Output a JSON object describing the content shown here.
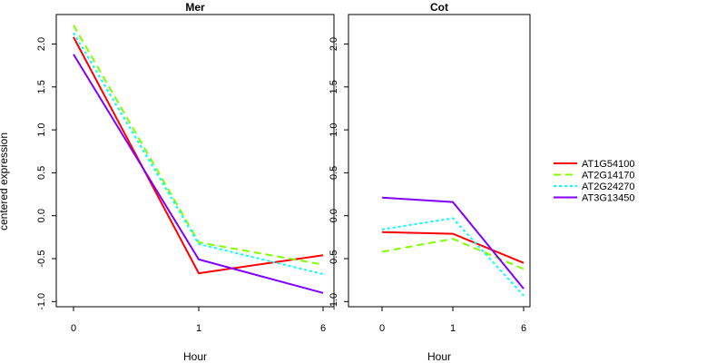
{
  "chart_data": {
    "type": "line",
    "ylabel": "centered expression",
    "xlabel": "Hour",
    "ylim": [
      -1.0,
      2.3
    ],
    "yticks": [
      "-1.0",
      "-0.5",
      "0.0",
      "0.5",
      "1.0",
      "1.5",
      "2.0"
    ],
    "categories": [
      "0",
      "1",
      "6"
    ],
    "legend_position": "right",
    "panels": [
      {
        "title": "Mer",
        "series": [
          {
            "name": "AT1G54100",
            "color": "#ff0000",
            "dash": "solid",
            "values": [
              2.08,
              -0.67,
              -0.46
            ]
          },
          {
            "name": "AT2G14170",
            "color": "#80ff00",
            "dash": "dashed",
            "values": [
              2.22,
              -0.31,
              -0.57
            ]
          },
          {
            "name": "AT2G24270",
            "color": "#00ffff",
            "dash": "dotted",
            "values": [
              2.13,
              -0.33,
              -0.68
            ]
          },
          {
            "name": "AT3G13450",
            "color": "#8000ff",
            "dash": "solid",
            "values": [
              1.88,
              -0.51,
              -0.9
            ]
          }
        ]
      },
      {
        "title": "Cot",
        "series": [
          {
            "name": "AT1G54100",
            "color": "#ff0000",
            "dash": "solid",
            "values": [
              -0.19,
              -0.21,
              -0.55
            ]
          },
          {
            "name": "AT2G14170",
            "color": "#80ff00",
            "dash": "dashed",
            "values": [
              -0.42,
              -0.27,
              -0.62
            ]
          },
          {
            "name": "AT2G24270",
            "color": "#00ffff",
            "dash": "dotted",
            "values": [
              -0.16,
              -0.03,
              -0.93
            ]
          },
          {
            "name": "AT3G13450",
            "color": "#8000ff",
            "dash": "solid",
            "values": [
              0.21,
              0.16,
              -0.85
            ]
          }
        ]
      }
    ],
    "legend": [
      {
        "name": "AT1G54100",
        "color": "#ff0000",
        "dash": "solid"
      },
      {
        "name": "AT2G14170",
        "color": "#80ff00",
        "dash": "dashed"
      },
      {
        "name": "AT2G24270",
        "color": "#00ffff",
        "dash": "dotted"
      },
      {
        "name": "AT3G13450",
        "color": "#8000ff",
        "dash": "solid"
      }
    ]
  }
}
